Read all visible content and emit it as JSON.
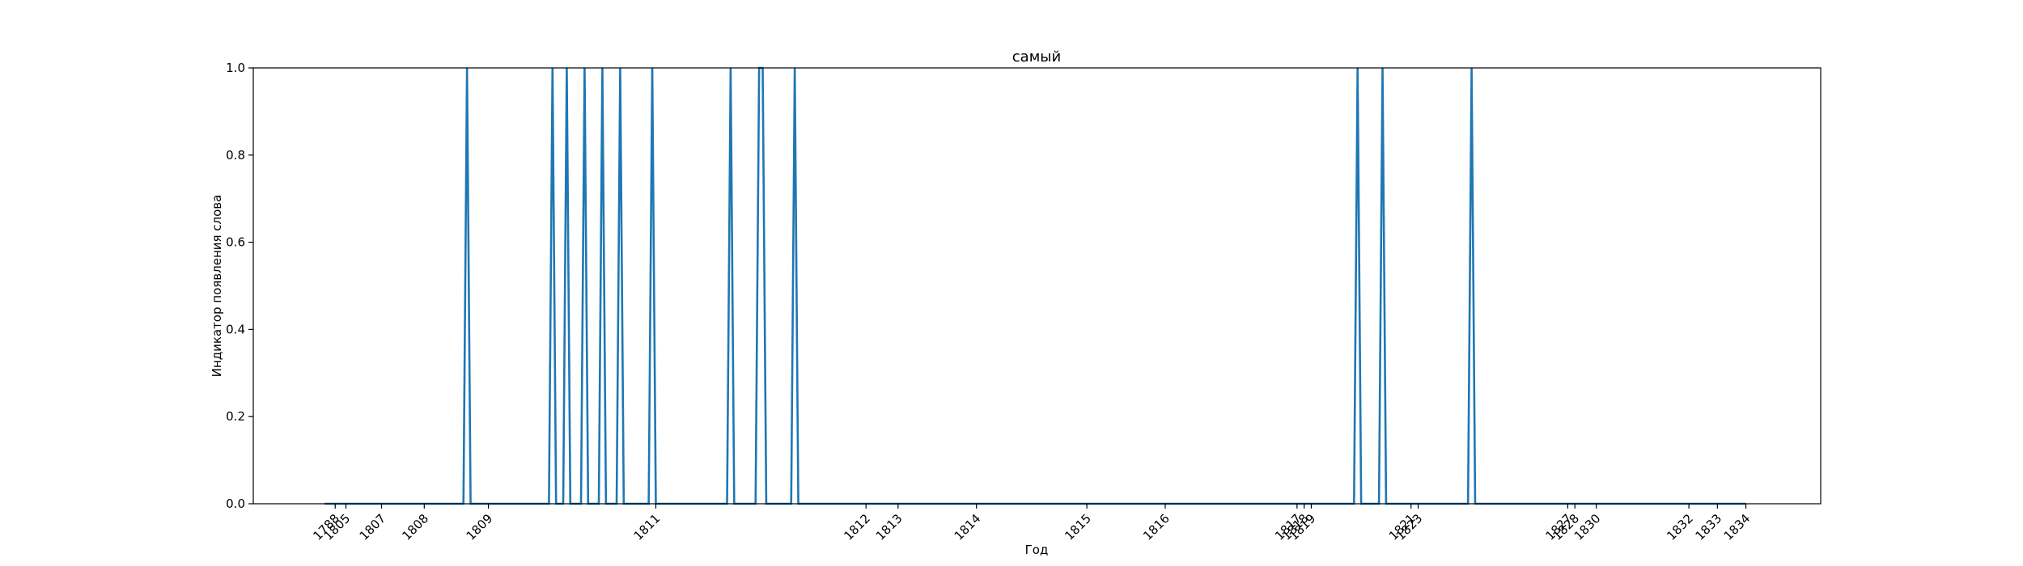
{
  "chart_data": {
    "type": "line",
    "title": "самый",
    "xlabel": "Год",
    "ylabel": "Индикатор появления слова",
    "ylim": [
      0,
      1
    ],
    "yticks": [
      "0.0",
      "0.2",
      "0.4",
      "0.6",
      "0.8",
      "1.0"
    ],
    "grid": false,
    "color": "#1f77b4",
    "x_axis_note": "categorical x axis of documents; labels printed at selected documents",
    "x_tick_labels": [
      {
        "doc": 3,
        "label": "1788"
      },
      {
        "doc": 6,
        "label": "1805"
      },
      {
        "doc": 16,
        "label": "1807"
      },
      {
        "doc": 28,
        "label": "1808"
      },
      {
        "doc": 46,
        "label": "1809"
      },
      {
        "doc": 93,
        "label": "1811"
      },
      {
        "doc": 152,
        "label": "1812"
      },
      {
        "doc": 161,
        "label": "1813"
      },
      {
        "doc": 183,
        "label": "1814"
      },
      {
        "doc": 214,
        "label": "1815"
      },
      {
        "doc": 236,
        "label": "1816"
      },
      {
        "doc": 273,
        "label": "1817"
      },
      {
        "doc": 275,
        "label": "1818"
      },
      {
        "doc": 277,
        "label": "1819"
      },
      {
        "doc": 305,
        "label": "1821"
      },
      {
        "doc": 307,
        "label": "1823"
      },
      {
        "doc": 349,
        "label": "1827"
      },
      {
        "doc": 351,
        "label": "1828"
      },
      {
        "doc": 357,
        "label": "1830"
      },
      {
        "doc": 383,
        "label": "1832"
      },
      {
        "doc": 391,
        "label": "1833"
      },
      {
        "doc": 399,
        "label": "1834"
      }
    ],
    "x_range": [
      -20,
      420
    ],
    "doc_count": 400,
    "occurrence_docs": [
      40,
      64,
      68,
      73,
      78,
      83,
      92,
      114,
      122,
      123,
      132,
      290,
      297,
      322
    ],
    "values": "1 at each document listed in occurrence_docs, 0 elsewhere"
  }
}
